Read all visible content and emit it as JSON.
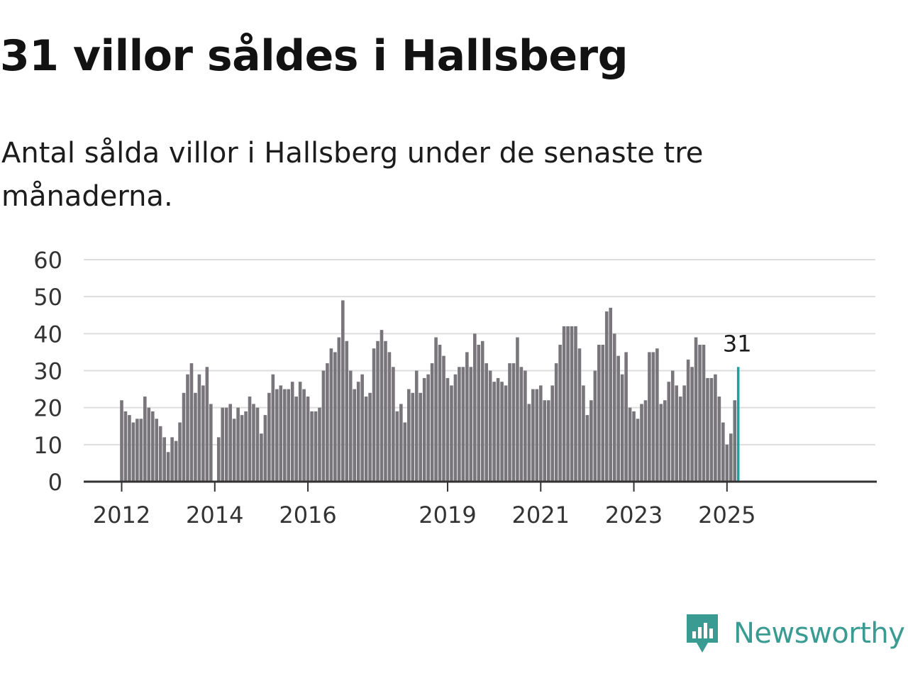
{
  "title": "31 villor såldes i Hallsberg",
  "subtitle": "Antal sålda villor i Hallsberg under de senaste tre månaderna.",
  "brand": {
    "name": "Newsworthy",
    "icon": "newsworthy-logo-icon",
    "color": "#3a9b93"
  },
  "chart_data": {
    "type": "bar",
    "title": "",
    "xlabel": "",
    "ylabel": "",
    "ylim": [
      0,
      60
    ],
    "yticks": [
      0,
      10,
      20,
      30,
      40,
      50,
      60
    ],
    "grid": true,
    "start": "2012-01",
    "frequency": "monthly",
    "colors": {
      "bar": "#78767b",
      "highlight": "#1aa39b",
      "grid": "#dddddd",
      "axis": "#333333"
    },
    "xtick_labels": [
      "2012",
      "2014",
      "2016",
      "2019",
      "2021",
      "2023",
      "2025"
    ],
    "series": [
      {
        "values": [
          22,
          19,
          18,
          16,
          17,
          17,
          23,
          20,
          19,
          17,
          15,
          12,
          8,
          12,
          11,
          16,
          24,
          29,
          32,
          24,
          29,
          26,
          31,
          21,
          0,
          12,
          20,
          20,
          21,
          17,
          20,
          18,
          19,
          23,
          21,
          20,
          13,
          18,
          24,
          29,
          25,
          26,
          25,
          25,
          27,
          23,
          27,
          25,
          23,
          19,
          19,
          20,
          30,
          32,
          36,
          35,
          39,
          49,
          38,
          30,
          25,
          27,
          29,
          23,
          24,
          36,
          38,
          41,
          38,
          35,
          31,
          19,
          21,
          16,
          25,
          24,
          30,
          24,
          28,
          29,
          32,
          39,
          37,
          34,
          28,
          26,
          29,
          31,
          31,
          35,
          31,
          40,
          37,
          38,
          32,
          30,
          27,
          28,
          27,
          26,
          32,
          32,
          39,
          31,
          30,
          21,
          25,
          25,
          26,
          22,
          22,
          26,
          32,
          37,
          42,
          42,
          42,
          42,
          36,
          26,
          18,
          22,
          30,
          37,
          37,
          46,
          47,
          40,
          34,
          29,
          35,
          20,
          19,
          17,
          21,
          22,
          35,
          35,
          36,
          21,
          22,
          27,
          30,
          26,
          23,
          26,
          33,
          31,
          39,
          37,
          37,
          28,
          28,
          29,
          23,
          16,
          10,
          13,
          22,
          31
        ]
      }
    ],
    "annotations": [
      {
        "label": "31",
        "value": 31,
        "date": "2025-04"
      }
    ]
  }
}
